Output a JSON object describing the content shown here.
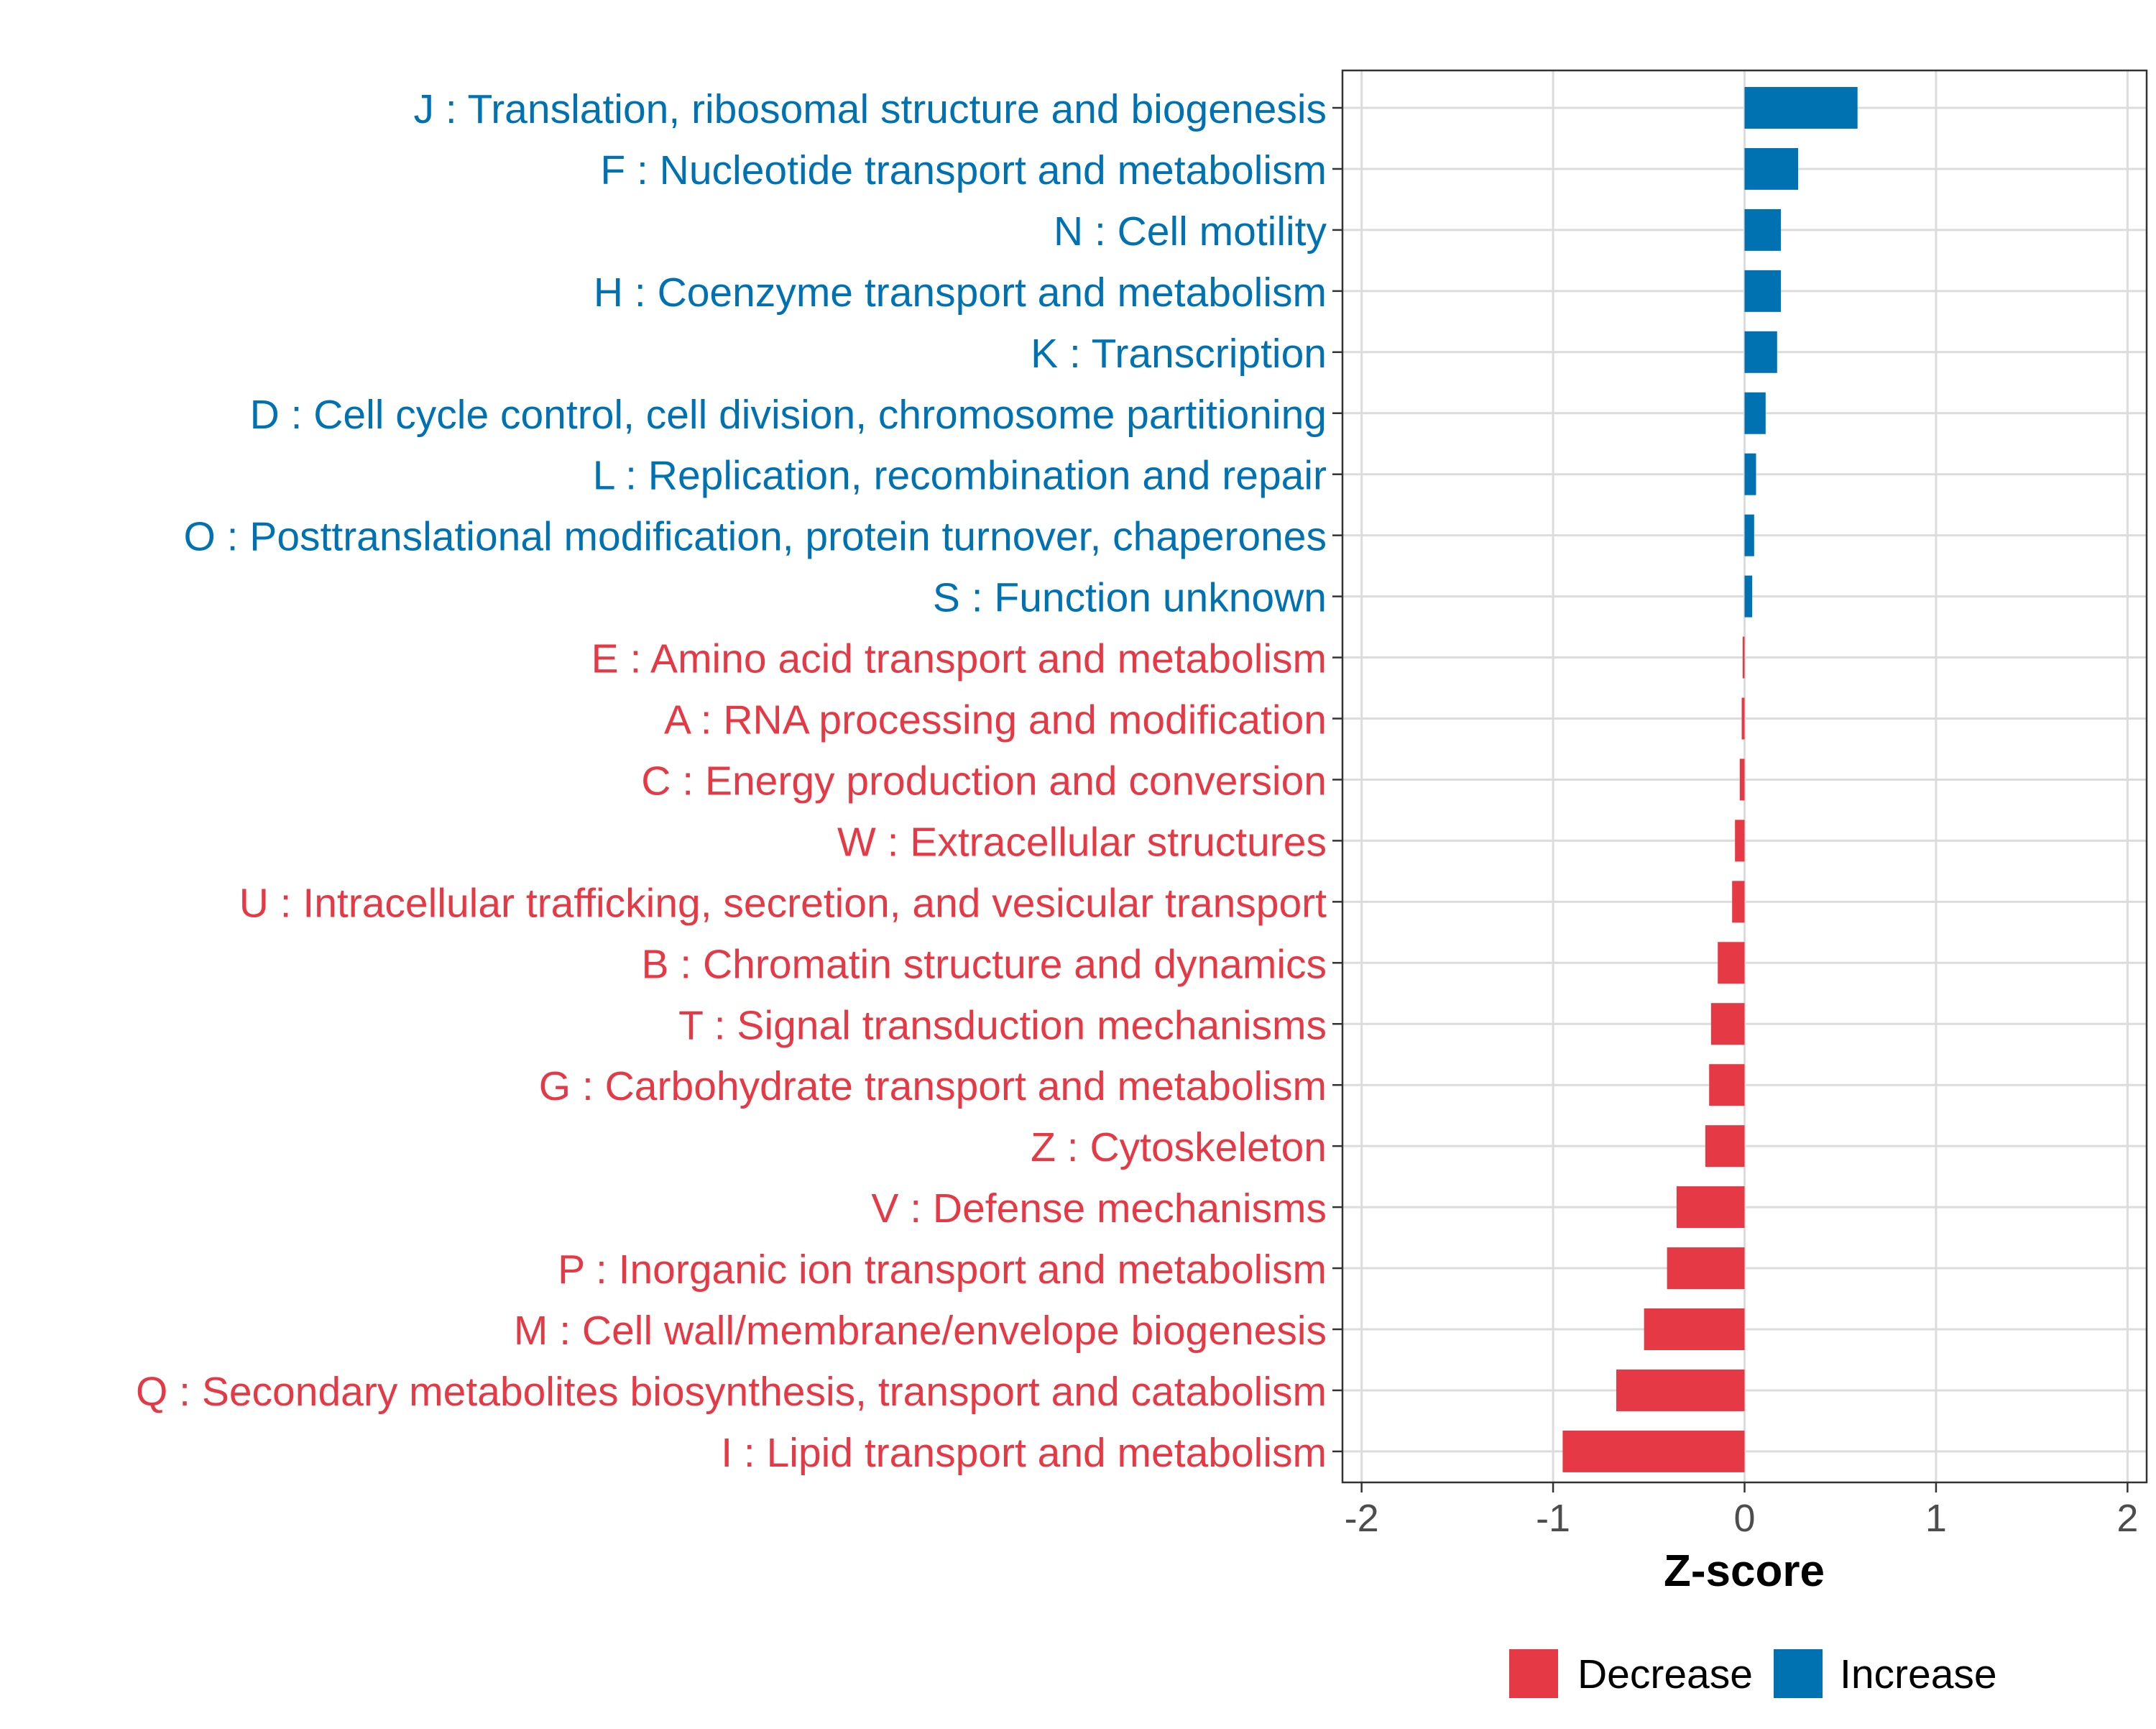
{
  "chart_data": {
    "type": "bar",
    "orientation": "horizontal",
    "title": "",
    "xlabel": "Z-score",
    "ylabel": "",
    "xlim": [
      -2.1,
      2.1
    ],
    "xticks": [
      -2,
      -1,
      0,
      1,
      2
    ],
    "xtick_labels": [
      "-2",
      "-1",
      "0",
      "1",
      "2"
    ],
    "grid": true,
    "legend_position": "bottom",
    "colors": {
      "Increase": "#0072B2",
      "Decrease": "#E63946"
    },
    "legend": [
      {
        "label": "Decrease",
        "color": "#E63946"
      },
      {
        "label": "Increase",
        "color": "#0072B2"
      }
    ],
    "categories": [
      "J : Translation, ribosomal structure and biogenesis",
      "F : Nucleotide transport and metabolism",
      "N : Cell motility",
      "H : Coenzyme transport and metabolism",
      "K : Transcription",
      "D : Cell cycle control, cell division, chromosome partitioning",
      "L : Replication, recombination and repair",
      "O : Posttranslational modification, protein turnover, chaperones",
      "S : Function unknown",
      "E : Amino acid transport and metabolism",
      "A : RNA processing and modification",
      "C : Energy production and conversion",
      "W : Extracellular structures",
      "U : Intracellular trafficking, secretion, and vesicular transport",
      "B : Chromatin structure and dynamics",
      "T : Signal transduction mechanisms",
      "G : Carbohydrate transport and metabolism",
      "Z : Cytoskeleton",
      "V : Defense mechanisms",
      "P : Inorganic ion transport and metabolism",
      "M : Cell wall/membrane/envelope biogenesis",
      "Q : Secondary metabolites biosynthesis, transport and catabolism",
      "I : Lipid transport and metabolism"
    ],
    "values": [
      0.59,
      0.28,
      0.19,
      0.19,
      0.17,
      0.11,
      0.06,
      0.05,
      0.04,
      -0.01,
      -0.015,
      -0.025,
      -0.05,
      -0.065,
      -0.14,
      -0.175,
      -0.185,
      -0.205,
      -0.355,
      -0.405,
      -0.525,
      -0.67,
      -0.95
    ],
    "groups": [
      "Increase",
      "Increase",
      "Increase",
      "Increase",
      "Increase",
      "Increase",
      "Increase",
      "Increase",
      "Increase",
      "Decrease",
      "Decrease",
      "Decrease",
      "Decrease",
      "Decrease",
      "Decrease",
      "Decrease",
      "Decrease",
      "Decrease",
      "Decrease",
      "Decrease",
      "Decrease",
      "Decrease",
      "Decrease"
    ]
  }
}
